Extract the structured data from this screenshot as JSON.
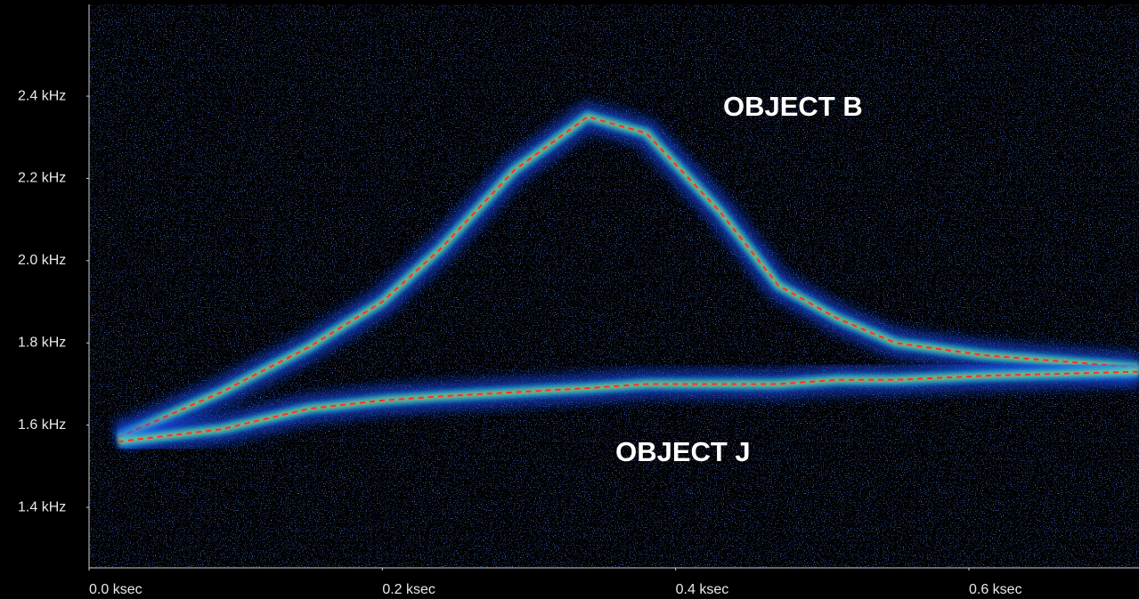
{
  "chart_data": {
    "type": "spectrogram",
    "x": [
      0.02,
      0.09,
      0.15,
      0.2,
      0.24,
      0.29,
      0.34,
      0.38,
      0.43,
      0.47,
      0.51,
      0.55,
      0.61,
      0.716
    ],
    "series": [
      {
        "color": "#ff3020",
        "values": [
          1.57,
          1.68,
          1.79,
          1.9,
          2.03,
          2.22,
          2.35,
          2.31,
          2.12,
          1.94,
          1.86,
          1.8,
          1.77,
          1.74
        ]
      },
      {
        "color": "#ff3020",
        "values": [
          1.56,
          1.59,
          1.64,
          1.66,
          1.67,
          1.68,
          1.69,
          1.7,
          1.7,
          1.7,
          1.71,
          1.71,
          1.72,
          1.73
        ]
      }
    ],
    "xlim": [
      0,
      0.716
    ],
    "ylim": [
      1.253,
      2.623
    ],
    "xticks": [
      {
        "value": 0,
        "label": "0.0 ksec"
      },
      {
        "value": 0.2,
        "label": "0.2 ksec"
      },
      {
        "value": 0.4,
        "label": "0.4 ksec"
      },
      {
        "value": 0.6,
        "label": "0.6 ksec"
      }
    ],
    "yticks": [
      {
        "value": 1.4,
        "label": "1.4 kHz"
      },
      {
        "value": 1.6,
        "label": "1.6 kHz"
      },
      {
        "value": 1.8,
        "label": "1.8 kHz"
      },
      {
        "value": 2.0,
        "label": "2.0 kHz"
      },
      {
        "value": 2.2,
        "label": "2.2 kHz"
      },
      {
        "value": 2.4,
        "label": "2.4 kHz"
      }
    ],
    "annotations": [
      {
        "text": "OBJECT B",
        "x": 0.48,
        "y": 2.37
      },
      {
        "text": "OBJECT J",
        "x": 0.405,
        "y": 1.53
      }
    ]
  }
}
